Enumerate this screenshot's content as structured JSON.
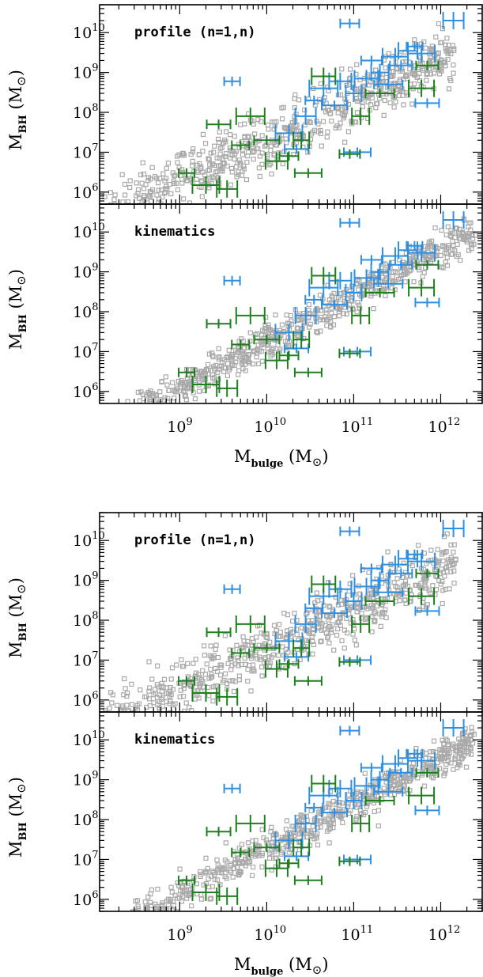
{
  "colors": {
    "model": "#a9a9a9",
    "observed_blue": "#2f8fe0",
    "observed_green": "#1f7f1f",
    "axis": "#000000"
  },
  "chart_data": [
    {
      "type": "scatter",
      "panel": "top figure, upper panel",
      "annotation": "profile (n=1,n)",
      "xlabel": "M_bulge (M_sun)",
      "ylabel": "M_BH (M_sun)",
      "xscale": "log",
      "yscale": "log",
      "xlim": [
        120000000.0,
        3000000000000.0
      ],
      "ylim": [
        500000.0,
        50000000000.0
      ],
      "xticks": [
        "10^9",
        "10^10",
        "10^11",
        "10^12"
      ],
      "yticks": [
        "10^6",
        "10^7",
        "10^8",
        "10^9",
        "10^10"
      ],
      "series": [
        {
          "color": "model",
          "marker": "open-square",
          "relation": {
            "slope": 1.0,
            "intercept_at_1e11": 200000000.0,
            "scatter_dex": 0.35,
            "xrange": [
              120000000.0,
              1500000000000.0
            ]
          }
        },
        {
          "color": "observed_blue",
          "marker": "errorbar",
          "points": [
            [
              4000000000.0,
              600000000.0
            ],
            [
              18000000000.0,
              30000000.0
            ],
            [
              22000000000.0,
              12000000.0
            ],
            [
              28000000000.0,
              80000000.0
            ],
            [
              35000000000.0,
              200000000.0
            ],
            [
              45000000000.0,
              400000000.0
            ],
            [
              60000000000.0,
              150000000.0
            ],
            [
              70000000000.0,
              600000000.0
            ],
            [
              90000000000.0,
              17000000000.0
            ],
            [
              100000000000.0,
              300000000.0
            ],
            [
              110000000000.0,
              10000000.0
            ],
            [
              140000000000.0,
              700000000.0
            ],
            [
              160000000000.0,
              2000000000.0
            ],
            [
              200000000000.0,
              1000000000.0
            ],
            [
              250000000000.0,
              500000000.0
            ],
            [
              300000000000.0,
              2500000000.0
            ],
            [
              350000000000.0,
              1500000000.0
            ],
            [
              420000000000.0,
              3500000000.0
            ],
            [
              500000000000.0,
              4500000000.0
            ],
            [
              600000000000.0,
              3000000000.0
            ],
            [
              700000000000.0,
              170000000.0
            ],
            [
              1400000000000.0,
              20000000000.0
            ]
          ]
        },
        {
          "color": "observed_green",
          "marker": "errorbar",
          "points": [
            [
              1200000000.0,
              3000000.0
            ],
            [
              2000000000.0,
              1500000.0
            ],
            [
              2800000000.0,
              50000000.0
            ],
            [
              3500000000.0,
              1200000.0
            ],
            [
              5000000000.0,
              15000000.0
            ],
            [
              6500000000.0,
              80000000.0
            ],
            [
              10000000000.0,
              20000000.0
            ],
            [
              13000000000.0,
              6000000.0
            ],
            [
              18000000000.0,
              8000000.0
            ],
            [
              25000000000.0,
              20000000.0
            ],
            [
              30000000000.0,
              3000000.0
            ],
            [
              45000000000.0,
              800000000.0
            ],
            [
              90000000000.0,
              9000000.0
            ],
            [
              120000000000.0,
              80000000.0
            ],
            [
              200000000000.0,
              300000000.0
            ],
            [
              600000000000.0,
              400000000.0
            ],
            [
              700000000000.0,
              1500000000.0
            ]
          ]
        }
      ]
    },
    {
      "type": "scatter",
      "panel": "top figure, lower panel",
      "annotation": "kinematics",
      "xlabel": "M_bulge (M_sun)",
      "ylabel": "M_BH (M_sun)",
      "xscale": "log",
      "yscale": "log",
      "xlim": [
        120000000.0,
        3000000000000.0
      ],
      "ylim": [
        500000.0,
        50000000000.0
      ],
      "xticks": [
        "10^9",
        "10^10",
        "10^11",
        "10^12"
      ],
      "yticks": [
        "10^6",
        "10^7",
        "10^8",
        "10^9",
        "10^10"
      ],
      "series": [
        {
          "color": "model",
          "marker": "open-square",
          "relation": {
            "slope": 1.15,
            "intercept_at_1e11": 250000000.0,
            "scatter_dex": 0.22,
            "xrange": [
              250000000.0,
              2500000000000.0
            ]
          }
        },
        {
          "color": "observed_blue",
          "marker": "errorbar",
          "points": [
            [
              4000000000.0,
              600000000.0
            ],
            [
              18000000000.0,
              30000000.0
            ],
            [
              22000000000.0,
              12000000.0
            ],
            [
              28000000000.0,
              80000000.0
            ],
            [
              35000000000.0,
              200000000.0
            ],
            [
              45000000000.0,
              400000000.0
            ],
            [
              60000000000.0,
              150000000.0
            ],
            [
              70000000000.0,
              600000000.0
            ],
            [
              90000000000.0,
              17000000000.0
            ],
            [
              100000000000.0,
              300000000.0
            ],
            [
              110000000000.0,
              10000000.0
            ],
            [
              140000000000.0,
              700000000.0
            ],
            [
              160000000000.0,
              2000000000.0
            ],
            [
              200000000000.0,
              1000000000.0
            ],
            [
              250000000000.0,
              500000000.0
            ],
            [
              300000000000.0,
              2500000000.0
            ],
            [
              350000000000.0,
              1500000000.0
            ],
            [
              420000000000.0,
              3500000000.0
            ],
            [
              500000000000.0,
              4500000000.0
            ],
            [
              600000000000.0,
              3000000000.0
            ],
            [
              700000000000.0,
              170000000.0
            ],
            [
              1400000000000.0,
              20000000000.0
            ]
          ]
        },
        {
          "color": "observed_green",
          "marker": "errorbar",
          "points": [
            [
              1200000000.0,
              3000000.0
            ],
            [
              2000000000.0,
              1500000.0
            ],
            [
              2800000000.0,
              50000000.0
            ],
            [
              3500000000.0,
              1200000.0
            ],
            [
              5000000000.0,
              15000000.0
            ],
            [
              6500000000.0,
              80000000.0
            ],
            [
              10000000000.0,
              20000000.0
            ],
            [
              13000000000.0,
              6000000.0
            ],
            [
              18000000000.0,
              8000000.0
            ],
            [
              25000000000.0,
              20000000.0
            ],
            [
              30000000000.0,
              3000000.0
            ],
            [
              45000000000.0,
              800000000.0
            ],
            [
              90000000000.0,
              9000000.0
            ],
            [
              120000000000.0,
              80000000.0
            ],
            [
              200000000000.0,
              300000000.0
            ],
            [
              600000000000.0,
              400000000.0
            ],
            [
              700000000000.0,
              1500000000.0
            ]
          ]
        }
      ]
    },
    {
      "type": "scatter",
      "panel": "bottom figure, upper panel",
      "annotation": "profile (n=1,n)",
      "xlabel": "M_bulge (M_sun)",
      "ylabel": "M_BH (M_sun)",
      "xscale": "log",
      "yscale": "log",
      "xlim": [
        120000000.0,
        3000000000000.0
      ],
      "ylim": [
        500000.0,
        50000000000.0
      ],
      "xticks": [
        "10^9",
        "10^10",
        "10^11",
        "10^12"
      ],
      "yticks": [
        "10^6",
        "10^7",
        "10^8",
        "10^9",
        "10^10"
      ],
      "series": [
        {
          "color": "model",
          "marker": "open-square",
          "relation": {
            "slope": 1.0,
            "intercept_at_1e11": 200000000.0,
            "scatter_dex": 0.35,
            "xrange": [
              120000000.0,
              1500000000000.0
            ]
          }
        },
        {
          "color": "observed_blue",
          "marker": "errorbar",
          "points": [
            [
              4000000000.0,
              600000000.0
            ],
            [
              18000000000.0,
              30000000.0
            ],
            [
              22000000000.0,
              12000000.0
            ],
            [
              28000000000.0,
              80000000.0
            ],
            [
              35000000000.0,
              200000000.0
            ],
            [
              45000000000.0,
              400000000.0
            ],
            [
              60000000000.0,
              150000000.0
            ],
            [
              70000000000.0,
              600000000.0
            ],
            [
              90000000000.0,
              17000000000.0
            ],
            [
              100000000000.0,
              300000000.0
            ],
            [
              110000000000.0,
              10000000.0
            ],
            [
              140000000000.0,
              700000000.0
            ],
            [
              160000000000.0,
              2000000000.0
            ],
            [
              200000000000.0,
              1000000000.0
            ],
            [
              250000000000.0,
              500000000.0
            ],
            [
              300000000000.0,
              2500000000.0
            ],
            [
              350000000000.0,
              1500000000.0
            ],
            [
              420000000000.0,
              3500000000.0
            ],
            [
              500000000000.0,
              4500000000.0
            ],
            [
              600000000000.0,
              3000000000.0
            ],
            [
              700000000000.0,
              170000000.0
            ],
            [
              1400000000000.0,
              20000000000.0
            ]
          ]
        },
        {
          "color": "observed_green",
          "marker": "errorbar",
          "points": [
            [
              1200000000.0,
              3000000.0
            ],
            [
              2000000000.0,
              1500000.0
            ],
            [
              2800000000.0,
              50000000.0
            ],
            [
              3500000000.0,
              1200000.0
            ],
            [
              5000000000.0,
              15000000.0
            ],
            [
              6500000000.0,
              80000000.0
            ],
            [
              10000000000.0,
              20000000.0
            ],
            [
              13000000000.0,
              6000000.0
            ],
            [
              18000000000.0,
              8000000.0
            ],
            [
              25000000000.0,
              20000000.0
            ],
            [
              30000000000.0,
              3000000.0
            ],
            [
              45000000000.0,
              800000000.0
            ],
            [
              90000000000.0,
              9000000.0
            ],
            [
              120000000000.0,
              80000000.0
            ],
            [
              200000000000.0,
              300000000.0
            ],
            [
              600000000000.0,
              400000000.0
            ],
            [
              700000000000.0,
              1500000000.0
            ]
          ]
        }
      ]
    },
    {
      "type": "scatter",
      "panel": "bottom figure, lower panel",
      "annotation": "kinematics",
      "xlabel": "M_bulge (M_sun)",
      "ylabel": "M_BH (M_sun)",
      "xscale": "log",
      "yscale": "log",
      "xlim": [
        120000000.0,
        3000000000000.0
      ],
      "ylim": [
        500000.0,
        50000000000.0
      ],
      "xticks": [
        "10^9",
        "10^10",
        "10^11",
        "10^12"
      ],
      "yticks": [
        "10^6",
        "10^7",
        "10^8",
        "10^9",
        "10^10"
      ],
      "series": [
        {
          "color": "model",
          "marker": "open-square",
          "relation": {
            "slope": 1.15,
            "intercept_at_1e11": 250000000.0,
            "scatter_dex": 0.22,
            "xrange": [
              250000000.0,
              2500000000000.0
            ]
          }
        },
        {
          "color": "observed_blue",
          "marker": "errorbar",
          "points": [
            [
              4000000000.0,
              600000000.0
            ],
            [
              18000000000.0,
              30000000.0
            ],
            [
              22000000000.0,
              12000000.0
            ],
            [
              28000000000.0,
              80000000.0
            ],
            [
              35000000000.0,
              200000000.0
            ],
            [
              45000000000.0,
              400000000.0
            ],
            [
              60000000000.0,
              150000000.0
            ],
            [
              70000000000.0,
              600000000.0
            ],
            [
              90000000000.0,
              17000000000.0
            ],
            [
              100000000000.0,
              300000000.0
            ],
            [
              110000000000.0,
              10000000.0
            ],
            [
              140000000000.0,
              700000000.0
            ],
            [
              160000000000.0,
              2000000000.0
            ],
            [
              200000000000.0,
              1000000000.0
            ],
            [
              250000000000.0,
              500000000.0
            ],
            [
              300000000000.0,
              2500000000.0
            ],
            [
              350000000000.0,
              1500000000.0
            ],
            [
              420000000000.0,
              3500000000.0
            ],
            [
              500000000000.0,
              4500000000.0
            ],
            [
              600000000000.0,
              3000000000.0
            ],
            [
              700000000000.0,
              170000000.0
            ],
            [
              1400000000000.0,
              20000000000.0
            ]
          ]
        },
        {
          "color": "observed_green",
          "marker": "errorbar",
          "points": [
            [
              1200000000.0,
              3000000.0
            ],
            [
              2000000000.0,
              1500000.0
            ],
            [
              2800000000.0,
              50000000.0
            ],
            [
              3500000000.0,
              1200000.0
            ],
            [
              5000000000.0,
              15000000.0
            ],
            [
              6500000000.0,
              80000000.0
            ],
            [
              10000000000.0,
              20000000.0
            ],
            [
              13000000000.0,
              6000000.0
            ],
            [
              18000000000.0,
              8000000.0
            ],
            [
              25000000000.0,
              20000000.0
            ],
            [
              30000000000.0,
              3000000.0
            ],
            [
              45000000000.0,
              800000000.0
            ],
            [
              90000000000.0,
              9000000.0
            ],
            [
              120000000000.0,
              80000000.0
            ],
            [
              200000000000.0,
              300000000.0
            ],
            [
              600000000000.0,
              400000000.0
            ],
            [
              700000000000.0,
              1500000000.0
            ]
          ]
        }
      ]
    }
  ]
}
